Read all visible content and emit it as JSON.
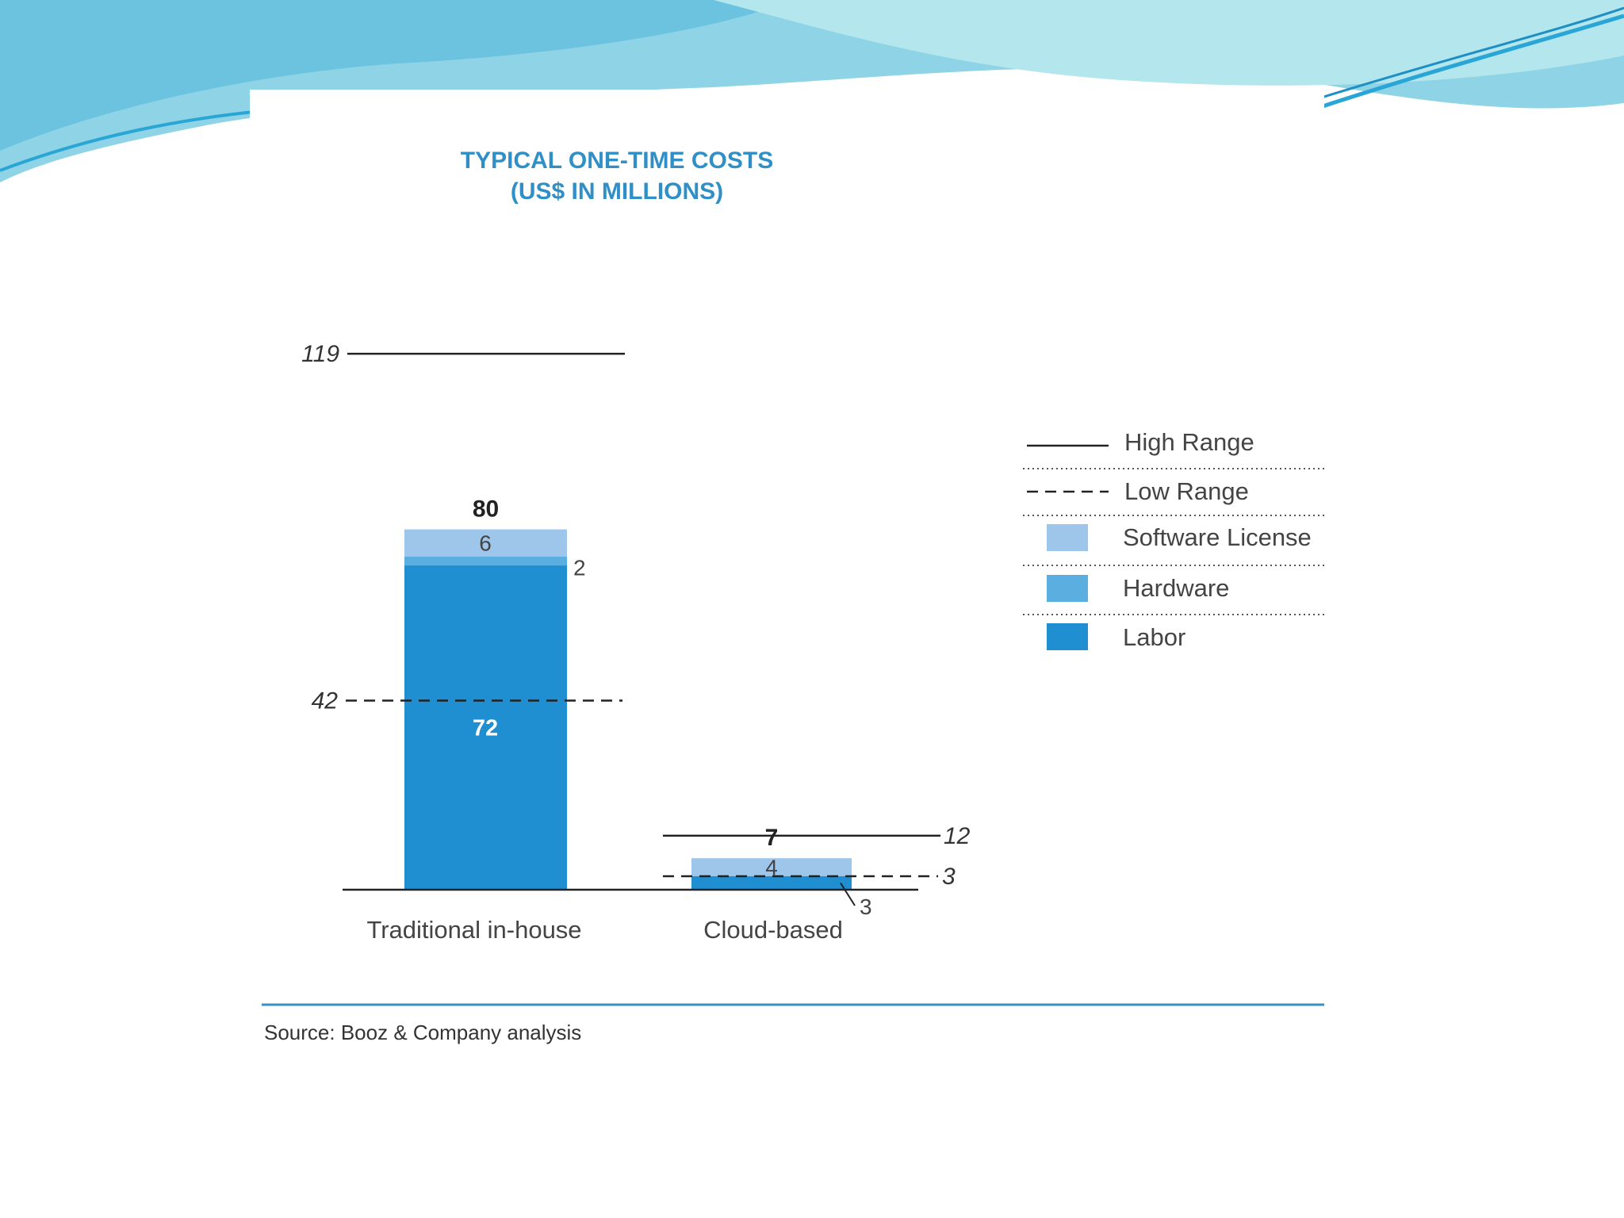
{
  "colors": {
    "title": "#2f8fc6",
    "software_license": "#9dc6ea",
    "hardware": "#5aaee0",
    "labor": "#1f8fd2",
    "source_rule": "#3a8fc4",
    "decor_light": "#b4e6ee",
    "decor_mid": "#7ccbe0",
    "decor_dark": "#2aa6d6"
  },
  "chart_data": {
    "type": "bar",
    "stacked": true,
    "title": "TYPICAL ONE-TIME COSTS",
    "subtitle": "(US$ IN MILLIONS)",
    "categories": [
      "Traditional in-house",
      "Cloud-based"
    ],
    "series": [
      {
        "name": "Labor",
        "values": [
          72,
          3
        ]
      },
      {
        "name": "Hardware",
        "values": [
          2,
          0
        ]
      },
      {
        "name": "Software License",
        "values": [
          6,
          4
        ]
      }
    ],
    "totals": [
      80,
      7
    ],
    "range": {
      "high": [
        119,
        12
      ],
      "low": [
        42,
        3
      ]
    },
    "legend": [
      {
        "label": "High Range",
        "kind": "solid-line"
      },
      {
        "label": "Low Range",
        "kind": "dashed-line"
      },
      {
        "label": "Software License",
        "kind": "swatch",
        "color_key": "software_license"
      },
      {
        "label": "Hardware",
        "kind": "swatch",
        "color_key": "hardware"
      },
      {
        "label": "Labor",
        "kind": "swatch",
        "color_key": "labor"
      }
    ],
    "legend_position": "right",
    "ylim": [
      0,
      119
    ],
    "grid": false
  },
  "source": "Source: Booz & Company analysis"
}
